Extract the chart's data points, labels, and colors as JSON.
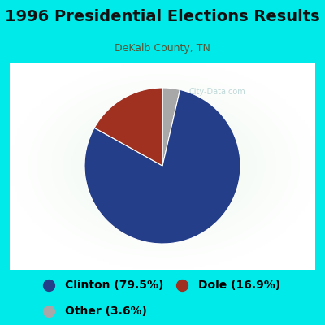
{
  "title": "1996 Presidential Elections Results",
  "subtitle": "DeKalb County, TN",
  "labels": [
    "Clinton",
    "Dole",
    "Other"
  ],
  "values": [
    79.5,
    16.9,
    3.6
  ],
  "colors": [
    "#253e8a",
    "#a03020",
    "#a8a8a8"
  ],
  "legend_labels": [
    "Clinton (79.5%)",
    "Dole (16.9%)",
    "Other (3.6%)"
  ],
  "bg_color_cyan": "#00eaea",
  "bg_color_chart": "#e8f5e8",
  "title_color": "#111111",
  "subtitle_color": "#555533",
  "watermark": "City-Data.com",
  "watermark_color": "#aacccc",
  "title_fontsize": 14,
  "subtitle_fontsize": 9,
  "legend_fontsize": 10
}
